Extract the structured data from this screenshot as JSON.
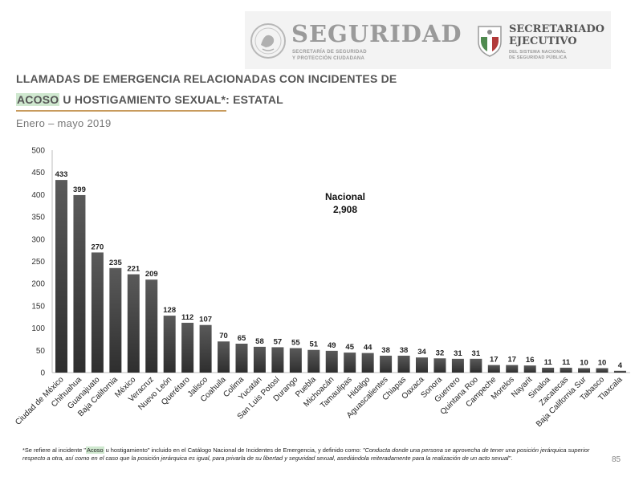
{
  "header": {
    "brand_word": "SEGURIDAD",
    "brand_sub_line1": "SECRETARÍA DE SEGURIDAD",
    "brand_sub_line2": "Y PROTECCIÓN CIUDADANA",
    "se_title_line1": "SECRETARIADO",
    "se_title_line2": "EJECUTIVO",
    "se_sub_line1": "DEL SISTEMA NACIONAL",
    "se_sub_line2": "DE SEGURIDAD PÚBLICA"
  },
  "title": {
    "line1": "LLAMADAS DE EMERGENCIA RELACIONADAS CON INCIDENTES DE",
    "line2_highlight": "ACOSO",
    "line2_rest": " U HOSTIGAMIENTO SEXUAL*: ESTATAL"
  },
  "subtitle": "Enero – mayo 2019",
  "total": {
    "label": "Nacional",
    "value": "2,908"
  },
  "chart_data": {
    "type": "bar",
    "title": "LLAMADAS DE EMERGENCIA RELACIONADAS CON INCIDENTES DE ACOSO U HOSTIGAMIENTO SEXUAL*: ESTATAL",
    "subtitle": "Enero – mayo 2019",
    "categories": [
      "Ciudad de México",
      "Chihuahua",
      "Guanajuato",
      "Baja California",
      "México",
      "Veracruz",
      "Nuevo León",
      "Querétaro",
      "Jalisco",
      "Coahuila",
      "Colima",
      "Yucatán",
      "San Luis Potosí",
      "Durango",
      "Puebla",
      "Michoacán",
      "Tamaulipas",
      "Hidalgo",
      "Aguascalientes",
      "Chiapas",
      "Oaxaca",
      "Sonora",
      "Guerrero",
      "Quintana Roo",
      "Campeche",
      "Morelos",
      "Nayarit",
      "Sinaloa",
      "Zacatecas",
      "Baja California Sur",
      "Tabasco",
      "Tlaxcala"
    ],
    "values": [
      433,
      399,
      270,
      235,
      221,
      209,
      128,
      112,
      107,
      70,
      65,
      58,
      57,
      55,
      51,
      49,
      45,
      44,
      38,
      38,
      34,
      32,
      31,
      31,
      17,
      17,
      16,
      11,
      11,
      10,
      10,
      4
    ],
    "data_labels": [
      "433",
      "399",
      "270",
      "235",
      "221",
      "209",
      "128",
      "112",
      "107",
      "70",
      "65",
      "58",
      "57",
      "55",
      "51",
      "49",
      "45",
      "44",
      "38",
      "38",
      "34",
      "32",
      "31",
      "31",
      "17",
      "17",
      "16",
      "11",
      "11",
      "10",
      "10",
      "4"
    ],
    "yticks": [
      "0",
      "50",
      "100",
      "150",
      "200",
      "250",
      "300",
      "350",
      "400",
      "450",
      "500"
    ],
    "ylim": [
      0,
      500
    ],
    "xlabel": "",
    "ylabel": "",
    "grid": false,
    "legend": "none",
    "bar_color_top": "#5a5a5a",
    "bar_color_bottom": "#2e2e2e"
  },
  "footnote": {
    "prefix": "*Se refiere al incidente \"",
    "highlight": "Acoso",
    "middle": " u hostigamiento\" incluido en el Catálogo Nacional de Incidentes de Emergencia, y definido como: ",
    "quote": "\"Conducta donde una persona se aprovecha de tener una posición jerárquica superior respecto a otra, así como en el caso que la posición jerárquica es igual, para privarla de su libertad y seguridad sexual, asediándola reiteradamente para la realización de un acto sexual\"",
    "suffix": "."
  },
  "page_number": "85",
  "colors": {
    "highlight": "#cfe8cf",
    "rule": "#c89b5d",
    "header_band": "#f3f3f3"
  }
}
